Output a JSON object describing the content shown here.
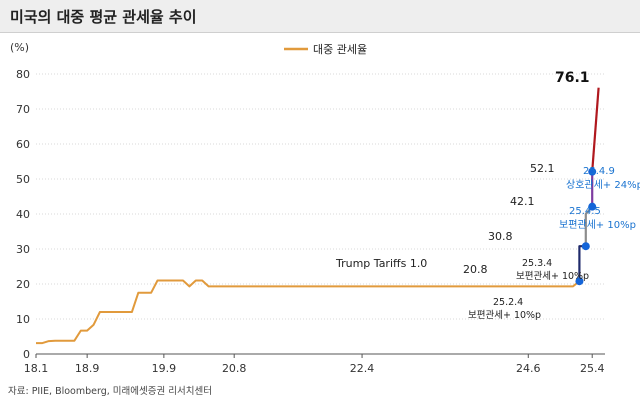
{
  "header": {
    "title": "미국의 대중 평균 관세율 추이"
  },
  "source": "자료: PIIE, Bloomberg, 미래에셋증권 리서치센터",
  "chart_data": {
    "type": "line",
    "ylabel": "(%)",
    "ylim": [
      0,
      80
    ],
    "yticks": [
      0,
      10,
      20,
      30,
      40,
      50,
      60,
      70,
      80
    ],
    "xlim": [
      "2018-01",
      "2025-06"
    ],
    "xticks": [
      {
        "label": "18.1",
        "date": "2018-01"
      },
      {
        "label": "18.9",
        "date": "2018-09"
      },
      {
        "label": "19.9",
        "date": "2019-09"
      },
      {
        "label": "20.8",
        "date": "2020-08"
      },
      {
        "label": "22.4",
        "date": "2022-04"
      },
      {
        "label": "24.6",
        "date": "2024-06"
      },
      {
        "label": "25.4",
        "date": "2025-04"
      }
    ],
    "legend": {
      "label": "대중 관세율",
      "placement": "top-center",
      "color": "#E19A3C"
    },
    "colors": {
      "line": "#E19A3C",
      "step_1": "#1F2A6B",
      "step_2": "#8C8C8C",
      "step_3": "#7E3BA0",
      "step_4": "#B0181E",
      "marker": "#1565D8",
      "annotation_blue": "#1A73D0"
    },
    "series": [
      {
        "name": "대중 관세율",
        "points": [
          [
            "2018-01",
            3.1
          ],
          [
            "2018-02",
            3.1
          ],
          [
            "2018-03",
            3.7
          ],
          [
            "2018-04",
            3.8
          ],
          [
            "2018-05",
            3.8
          ],
          [
            "2018-06",
            3.8
          ],
          [
            "2018-07",
            3.8
          ],
          [
            "2018-08",
            6.7
          ],
          [
            "2018-09",
            6.7
          ],
          [
            "2018-10",
            8.3
          ],
          [
            "2018-11",
            12.0
          ],
          [
            "2018-12",
            12.0
          ],
          [
            "2019-01",
            12.0
          ],
          [
            "2019-02",
            12.0
          ],
          [
            "2019-03",
            12.0
          ],
          [
            "2019-04",
            12.0
          ],
          [
            "2019-05",
            17.5
          ],
          [
            "2019-06",
            17.5
          ],
          [
            "2019-07",
            17.5
          ],
          [
            "2019-08",
            21.0
          ],
          [
            "2019-09",
            21.0
          ],
          [
            "2019-10",
            21.0
          ],
          [
            "2019-11",
            21.0
          ],
          [
            "2019-12",
            21.0
          ],
          [
            "2020-01",
            19.3
          ],
          [
            "2020-02",
            21.0
          ],
          [
            "2020-03",
            21.0
          ],
          [
            "2020-04",
            19.3
          ],
          [
            "2022-04",
            19.3
          ],
          [
            "2024-06",
            19.3
          ],
          [
            "2025-01",
            19.3
          ],
          [
            "2025-02",
            20.8
          ]
        ]
      },
      {
        "name": "",
        "color_key": "step_1",
        "points": [
          [
            "2025-02",
            20.8
          ],
          [
            "2025-02",
            30.8
          ],
          [
            "2025-03",
            30.8
          ]
        ]
      },
      {
        "name": "",
        "color_key": "step_2",
        "points": [
          [
            "2025-03",
            30.8
          ],
          [
            "2025-03",
            40.0
          ],
          [
            "2025-04",
            42.1
          ]
        ]
      },
      {
        "name": "",
        "color_key": "step_3",
        "points": [
          [
            "2025-04",
            42.1
          ],
          [
            "2025-04",
            52.1
          ]
        ]
      },
      {
        "name": "",
        "color_key": "step_4",
        "points": [
          [
            "2025-04",
            52.1
          ],
          [
            "2025-05",
            76.1
          ]
        ]
      }
    ],
    "markers": [
      {
        "date": "2025-02",
        "value": 20.8
      },
      {
        "date": "2025-03",
        "value": 30.8
      },
      {
        "date": "2025-04",
        "value": 42.1
      },
      {
        "date": "2025-04",
        "value": 52.1
      }
    ],
    "value_labels": [
      "20.8",
      "30.8",
      "42.1",
      "52.1",
      "76.1"
    ],
    "annotations": {
      "trump": "Trump Tariffs 1.0",
      "event_1_date": "25.2.4",
      "event_1_text": "보편관세+ 10%p",
      "event_2_date": "25.3.4",
      "event_2_text": "보편관세+ 10%p",
      "event_3_date": "25.4.5",
      "event_3_text": "보편관세+ 10%p",
      "event_4_date": "25.4.9",
      "event_4_text": "상호관세+ 24%p"
    }
  }
}
